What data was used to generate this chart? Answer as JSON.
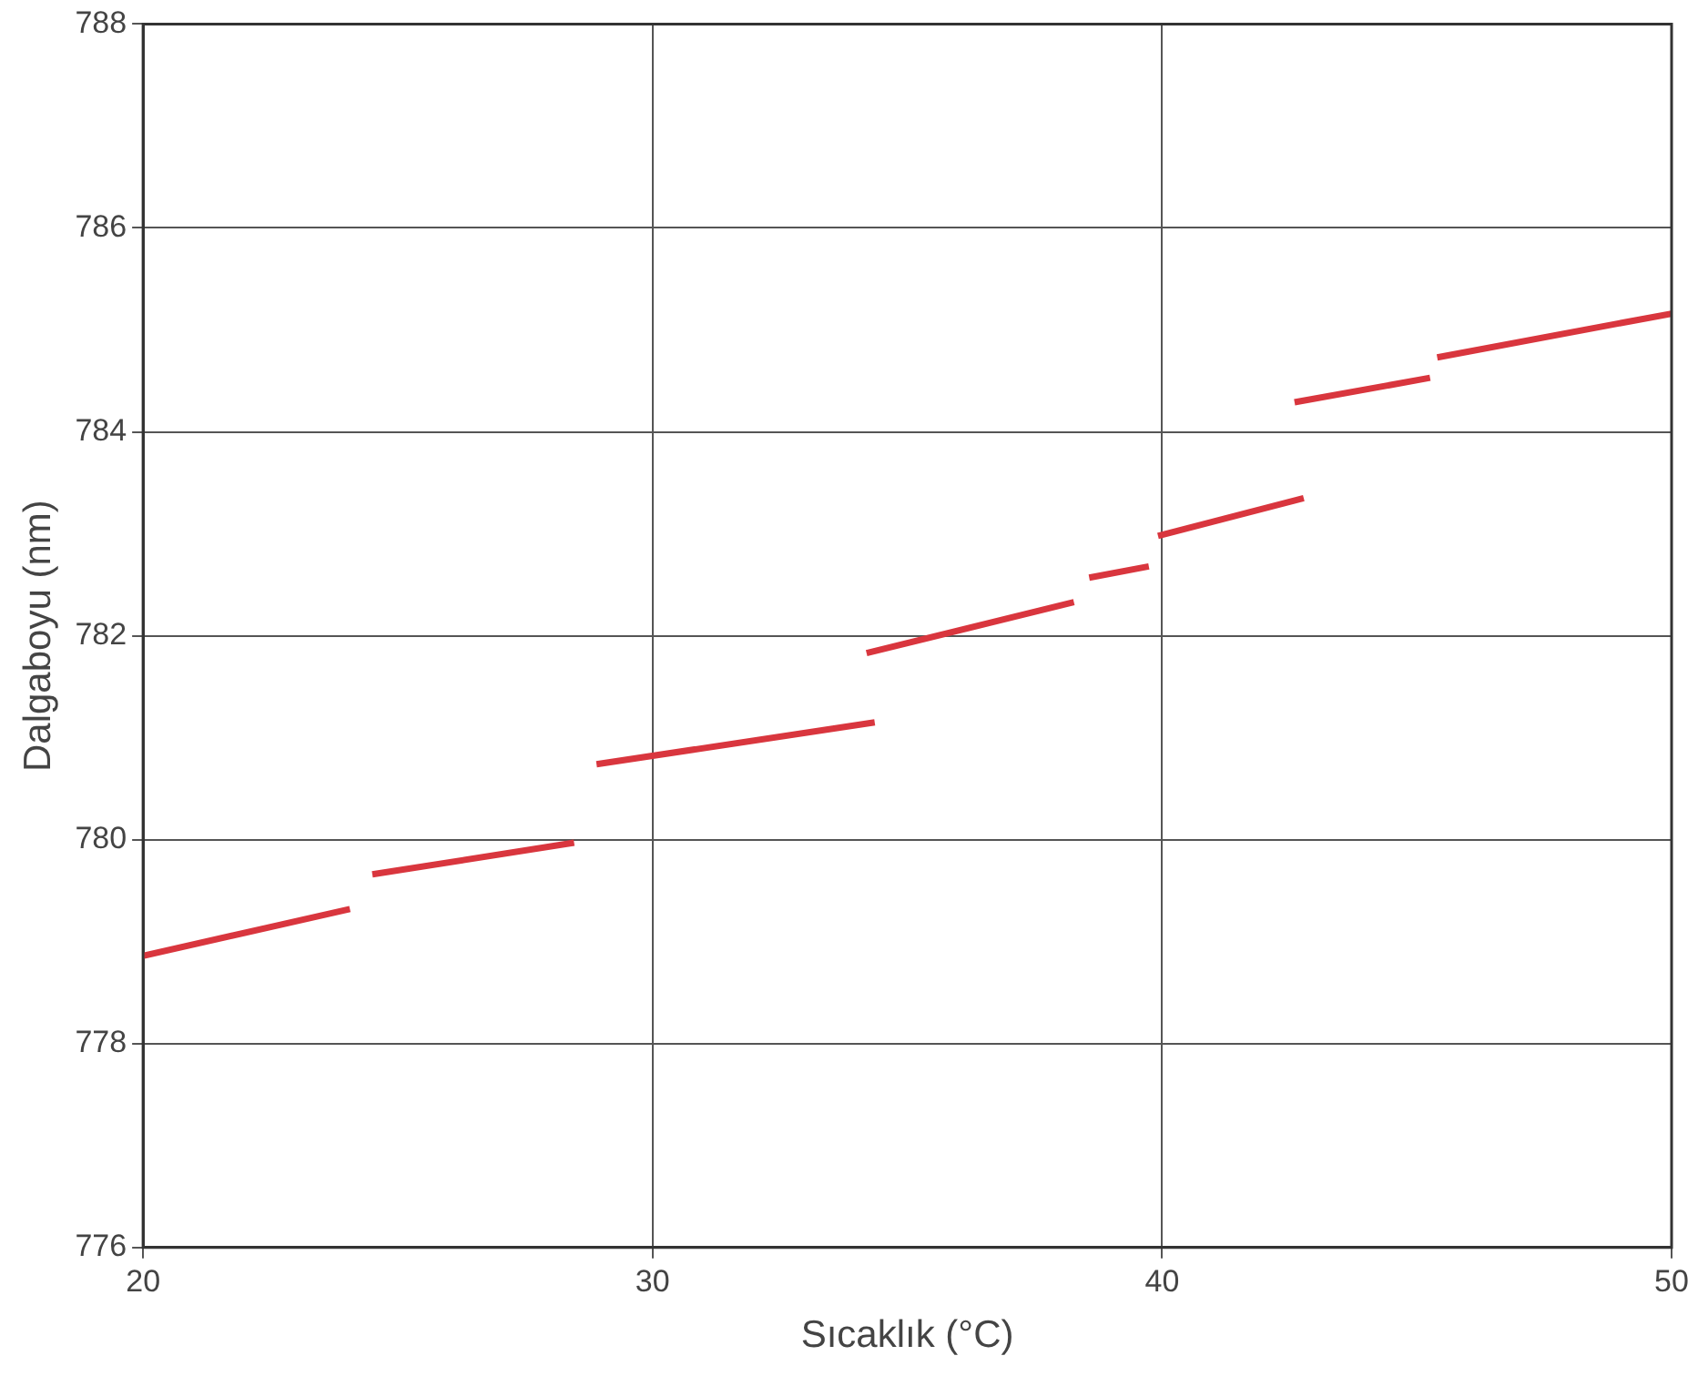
{
  "chart_data": {
    "type": "line",
    "xlabel": "Sıcaklık (°C)",
    "ylabel": "Dalgaboyu (nm)",
    "xlim": [
      20,
      50
    ],
    "xticks": [
      20,
      30,
      40,
      50
    ],
    "ylim": [
      776,
      788
    ],
    "yticks": [
      776,
      778,
      780,
      782,
      784,
      786,
      788
    ],
    "grid": true,
    "legend": false,
    "marker": "none",
    "line_style": "solid",
    "series": [
      {
        "color": "#d9363e",
        "x": [
          20,
          24.06
        ],
        "values": [
          778.86,
          779.32
        ]
      },
      {
        "color": "#d9363e",
        "x": [
          24.5,
          28.46
        ],
        "values": [
          779.66,
          779.97
        ]
      },
      {
        "color": "#d9363e",
        "x": [
          28.9,
          34.36
        ],
        "values": [
          780.74,
          781.15
        ]
      },
      {
        "color": "#d9363e",
        "x": [
          34.2,
          38.27
        ],
        "values": [
          781.83,
          782.33
        ]
      },
      {
        "color": "#d9363e",
        "x": [
          38.57,
          39.74
        ],
        "values": [
          782.57,
          782.68
        ]
      },
      {
        "color": "#d9363e",
        "x": [
          39.92,
          42.78
        ],
        "values": [
          782.98,
          783.35
        ]
      },
      {
        "color": "#d9363e",
        "x": [
          42.6,
          45.26
        ],
        "values": [
          784.29,
          784.53
        ]
      },
      {
        "color": "#d9363e",
        "x": [
          45.4,
          50
        ],
        "values": [
          784.73,
          785.16
        ]
      }
    ]
  }
}
